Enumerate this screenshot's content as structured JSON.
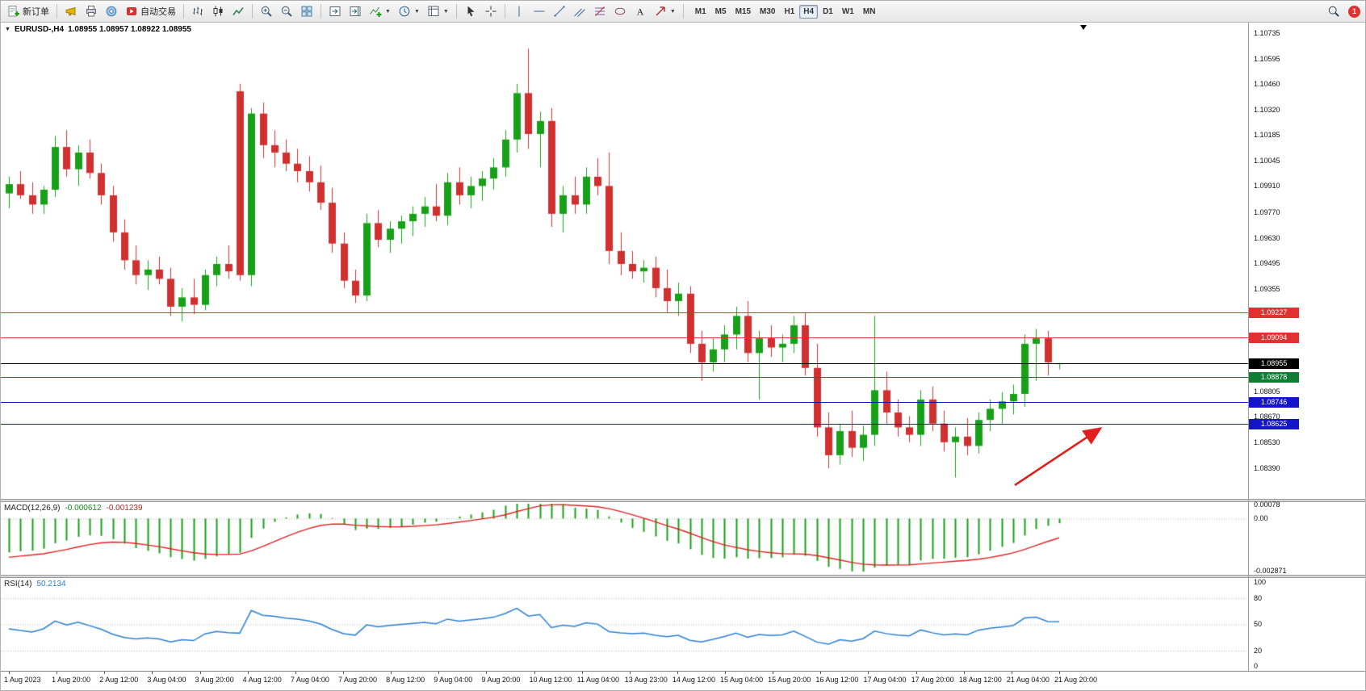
{
  "toolbar": {
    "new_order_label": "新订单",
    "autotrade_label": "自动交易",
    "timeframes": [
      "M1",
      "M5",
      "M15",
      "M30",
      "H1",
      "H4",
      "D1",
      "W1",
      "MN"
    ],
    "active_timeframe": "H4",
    "notification_count": "1"
  },
  "chart": {
    "title_symbol": "EURUSD-,H4",
    "title_ohlc": "1.08955 1.08957 1.08922 1.08955",
    "price_axis_labels": [
      1.10735,
      1.10595,
      1.1046,
      1.1032,
      1.10185,
      1.10045,
      1.0991,
      1.0977,
      1.0963,
      1.09495,
      1.09355,
      1.08805,
      1.0867,
      1.0853,
      1.0839
    ],
    "levels": [
      {
        "label": "1.09227",
        "price": 1.09227,
        "color": "#e03030",
        "type": "resistance"
      },
      {
        "label": "1.09094",
        "price": 1.09094,
        "color": "#e03030",
        "type": "resistance"
      },
      {
        "label": "1.08955",
        "price": 1.08955,
        "color": "#000000",
        "type": "bid"
      },
      {
        "label": "1.08878",
        "price": 1.08878,
        "color": "#0f7d32",
        "type": "support"
      },
      {
        "label": "1.08746",
        "price": 1.08746,
        "color": "#1414c8",
        "type": "support"
      },
      {
        "label": "1.08625",
        "price": 1.08625,
        "color": "#1414c8",
        "type": "support"
      }
    ],
    "time_axis_labels": [
      "1 Aug 2023",
      "1 Aug 20:00",
      "2 Aug 12:00",
      "3 Aug 04:00",
      "3 Aug 20:00",
      "4 Aug 12:00",
      "7 Aug 04:00",
      "7 Aug 20:00",
      "8 Aug 12:00",
      "9 Aug 04:00",
      "9 Aug 20:00",
      "10 Aug 12:00",
      "11 Aug 04:00",
      "13 Aug 23:00",
      "14 Aug 12:00",
      "15 Aug 04:00",
      "15 Aug 20:00",
      "16 Aug 12:00",
      "17 Aug 04:00",
      "17 Aug 20:00",
      "18 Aug 12:00",
      "21 Aug 04:00",
      "21 Aug 20:00"
    ]
  },
  "indicators": {
    "macd": {
      "name": "MACD(12,26,9)",
      "main_value": "-0.000612",
      "signal_value": "-0.001239",
      "axis_top": "0.00078",
      "axis_zero": "0.00",
      "axis_bottom": "-0.002871"
    },
    "rsi": {
      "name": "RSI(14)",
      "value": "50.2134",
      "axis_labels_top": "100",
      "axis_80": "80",
      "axis_50": "50",
      "axis_20": "20",
      "axis_0": "0"
    }
  },
  "chart_data": {
    "type": "candlestick",
    "symbol": "EURUSD-",
    "timeframe": "H4",
    "title": "EURUSD-,H4",
    "ohlc_last": {
      "open": 1.08955,
      "high": 1.08957,
      "low": 1.08922,
      "close": 1.08955
    },
    "x_range": [
      "1 Aug 2023",
      "21 Aug 20:00"
    ],
    "y_range": [
      1.083,
      1.108
    ],
    "up_color": "#18a018",
    "down_color": "#d03030",
    "macd_scale": {
      "max": 0.00078,
      "min": -0.002871
    },
    "rsi_levels": [
      80,
      50,
      20
    ],
    "candles": [
      [
        1.0987,
        1.0996,
        1.0979,
        1.0992
      ],
      [
        1.0992,
        1.0999,
        1.0984,
        1.0986
      ],
      [
        1.0986,
        1.0993,
        1.0976,
        1.0981
      ],
      [
        1.0981,
        1.0991,
        1.0976,
        1.0989
      ],
      [
        1.0989,
        1.1018,
        1.0985,
        1.1012
      ],
      [
        1.1012,
        1.1021,
        1.0996,
        1.1
      ],
      [
        1.1,
        1.1013,
        1.0991,
        1.1009
      ],
      [
        1.1009,
        1.1016,
        1.0995,
        1.0998
      ],
      [
        1.0998,
        1.1003,
        1.0981,
        1.0986
      ],
      [
        1.0986,
        1.0991,
        1.0961,
        1.0966
      ],
      [
        1.0966,
        1.0973,
        1.0946,
        1.0951
      ],
      [
        1.0951,
        1.0959,
        1.0938,
        1.0943
      ],
      [
        1.0943,
        1.0951,
        1.0935,
        1.0946
      ],
      [
        1.0946,
        1.0953,
        1.0938,
        1.0941
      ],
      [
        1.0941,
        1.0947,
        1.0921,
        1.0926
      ],
      [
        1.0926,
        1.0936,
        1.0918,
        1.0931
      ],
      [
        1.0931,
        1.0941,
        1.0922,
        1.0927
      ],
      [
        1.0927,
        1.0946,
        1.0924,
        1.0943
      ],
      [
        1.0943,
        1.0953,
        1.0937,
        1.0949
      ],
      [
        1.0949,
        1.0959,
        1.0941,
        1.0945
      ],
      [
        1.1042,
        1.1046,
        1.094,
        1.0943
      ],
      [
        1.0943,
        1.1033,
        1.0937,
        1.103
      ],
      [
        1.103,
        1.1036,
        1.1006,
        1.1013
      ],
      [
        1.1013,
        1.1021,
        1.1001,
        1.1009
      ],
      [
        1.1009,
        1.1016,
        1.0999,
        1.1003
      ],
      [
        1.1003,
        1.1011,
        1.0993,
        1.0999
      ],
      [
        1.0999,
        1.1007,
        1.0988,
        1.0993
      ],
      [
        1.0993,
        1.1002,
        1.0978,
        1.0982
      ],
      [
        1.0982,
        1.099,
        1.0955,
        1.096
      ],
      [
        1.096,
        1.0966,
        1.0936,
        1.094
      ],
      [
        1.094,
        1.0946,
        1.0928,
        1.0932
      ],
      [
        1.0932,
        1.0976,
        1.0929,
        1.0971
      ],
      [
        1.0971,
        1.0978,
        1.0958,
        1.0962
      ],
      [
        1.0962,
        1.0972,
        1.0955,
        1.0968
      ],
      [
        1.0968,
        1.0975,
        1.096,
        1.0972
      ],
      [
        1.0972,
        1.098,
        1.0964,
        1.0976
      ],
      [
        1.0976,
        1.0985,
        1.0969,
        1.098
      ],
      [
        1.098,
        1.0992,
        1.0972,
        1.0975
      ],
      [
        1.0975,
        1.0998,
        1.097,
        1.0993
      ],
      [
        1.0993,
        1.1001,
        1.0981,
        1.0986
      ],
      [
        1.0986,
        1.0996,
        1.0979,
        1.0991
      ],
      [
        1.0991,
        1.0999,
        1.0983,
        1.0995
      ],
      [
        1.0995,
        1.1006,
        1.0989,
        1.1001
      ],
      [
        1.1001,
        1.1021,
        1.0996,
        1.1016
      ],
      [
        1.1016,
        1.1046,
        1.1009,
        1.1041
      ],
      [
        1.1041,
        1.1065,
        1.1011,
        1.1019
      ],
      [
        1.1019,
        1.1031,
        1.1001,
        1.1026
      ],
      [
        1.1026,
        1.1033,
        1.0969,
        1.0976
      ],
      [
        1.0976,
        1.0991,
        1.0966,
        1.0986
      ],
      [
        1.0986,
        1.0996,
        1.0976,
        1.0981
      ],
      [
        1.0981,
        1.1001,
        1.0976,
        1.0996
      ],
      [
        1.0996,
        1.1006,
        1.0986,
        1.0991
      ],
      [
        1.0991,
        1.1009,
        1.0949,
        1.0956
      ],
      [
        1.0956,
        1.0966,
        1.0943,
        1.0949
      ],
      [
        1.0949,
        1.0956,
        1.0941,
        1.0945
      ],
      [
        1.0945,
        1.0951,
        1.0939,
        1.0947
      ],
      [
        1.0947,
        1.0953,
        1.0931,
        1.0936
      ],
      [
        1.0936,
        1.0946,
        1.0923,
        1.0929
      ],
      [
        1.0929,
        1.0939,
        1.0921,
        1.0933
      ],
      [
        1.0933,
        1.0937,
        1.0901,
        1.0906
      ],
      [
        1.0906,
        1.0913,
        1.0886,
        1.0896
      ],
      [
        1.0896,
        1.0909,
        1.0891,
        1.0903
      ],
      [
        1.0903,
        1.0916,
        1.0896,
        1.0911
      ],
      [
        1.0911,
        1.0926,
        1.0903,
        1.0921
      ],
      [
        1.0921,
        1.0929,
        1.0896,
        1.0901
      ],
      [
        1.0901,
        1.0913,
        1.0876,
        1.0909
      ],
      [
        1.0909,
        1.0916,
        1.0899,
        1.0904
      ],
      [
        1.0904,
        1.0911,
        1.0896,
        1.0906
      ],
      [
        1.0906,
        1.0921,
        1.0901,
        1.0916
      ],
      [
        1.0916,
        1.0923,
        1.0889,
        1.0893
      ],
      [
        1.0893,
        1.0906,
        1.0856,
        1.0861
      ],
      [
        1.0861,
        1.0869,
        1.0839,
        1.0846
      ],
      [
        1.0846,
        1.0863,
        1.0841,
        1.0859
      ],
      [
        1.0859,
        1.087,
        1.0845,
        1.085
      ],
      [
        1.085,
        1.0862,
        1.0843,
        1.0857
      ],
      [
        1.0857,
        1.0921,
        1.0851,
        1.0881
      ],
      [
        1.0881,
        1.0891,
        1.0863,
        1.0869
      ],
      [
        1.0869,
        1.0876,
        1.0856,
        1.0861
      ],
      [
        1.0861,
        1.0867,
        1.0853,
        1.0857
      ],
      [
        1.0857,
        1.0881,
        1.0851,
        1.0876
      ],
      [
        1.0876,
        1.0883,
        1.0859,
        1.0863
      ],
      [
        1.0863,
        1.087,
        1.0848,
        1.0853
      ],
      [
        1.0853,
        1.0861,
        1.0834,
        1.0856
      ],
      [
        1.0856,
        1.0866,
        1.0846,
        1.0851
      ],
      [
        1.0851,
        1.0869,
        1.0847,
        1.0865
      ],
      [
        1.0865,
        1.0876,
        1.0859,
        1.0871
      ],
      [
        1.0871,
        1.088,
        1.0863,
        1.0875
      ],
      [
        1.0875,
        1.0884,
        1.0868,
        1.0879
      ],
      [
        1.0879,
        1.0911,
        1.0872,
        1.0906
      ],
      [
        1.0906,
        1.0914,
        1.0886,
        1.0909
      ],
      [
        1.0909,
        1.0913,
        1.0889,
        1.0896
      ],
      [
        1.08955,
        1.08957,
        1.08922,
        1.08955
      ]
    ]
  }
}
